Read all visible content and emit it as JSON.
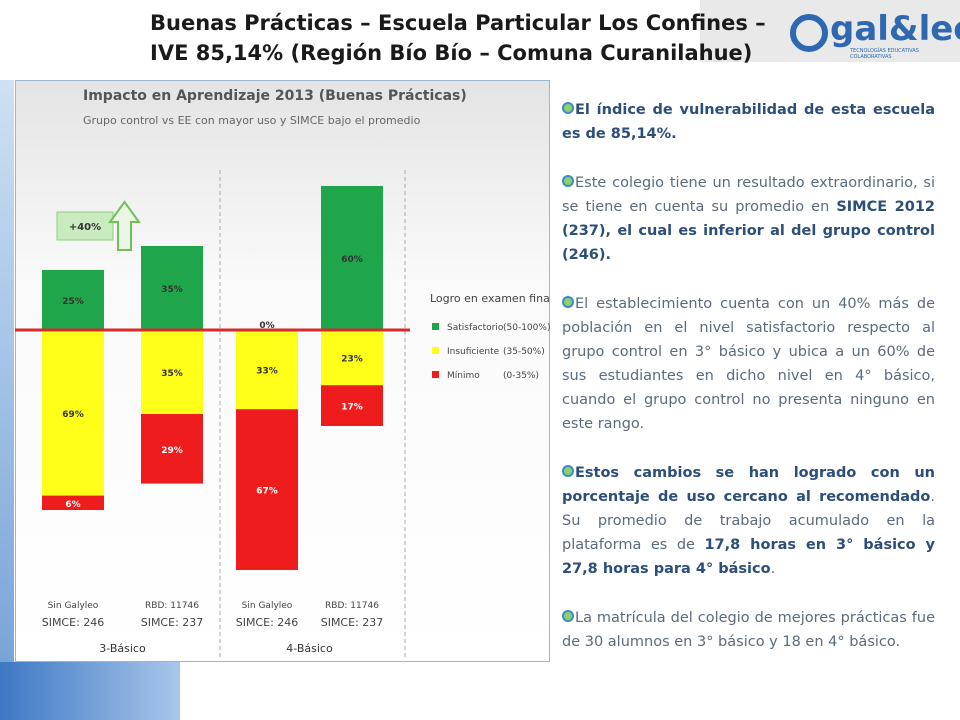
{
  "header": {
    "title_lines": [
      "Buenas Prácticas – Escuela Particular Los Confines –",
      "IVE 85,14% (Región Bío Bío – Comuna Curanilahue)"
    ]
  },
  "logo": {
    "name": "gal&leo",
    "tagline": "TECNOLOGÍAS EDUCATIVAS COLABORATIVAS"
  },
  "chart_data": {
    "type": "diverging-stacked-bar",
    "title": "Impacto en Aprendizaje 2013 (Buenas Prácticas)",
    "subtitle": "Grupo control vs EE con mayor uso y SIMCE bajo el promedio",
    "categories": [
      [
        "Sin Galyleo",
        "SIMCE: 246"
      ],
      [
        "RBD: 11746",
        "SIMCE: 237"
      ],
      [
        "Sin Galyleo",
        "SIMCE: 246"
      ],
      [
        "RBD: 11746",
        "SIMCE: 237"
      ]
    ],
    "groups": [
      "3-Básico",
      "4-Básico"
    ],
    "legend_title": "Logro en examen final",
    "series": [
      {
        "name": "Satisfactorio",
        "range": "(50-100%)",
        "color": "#1fa64a",
        "values": [
          25,
          35,
          0,
          60
        ],
        "value_labels": [
          "25%",
          "35%",
          "0%",
          "60%"
        ]
      },
      {
        "name": "Insuficiente",
        "range": "(35-50%)",
        "color": "#ffff1a",
        "values": [
          69,
          35,
          33,
          23
        ],
        "value_labels": [
          "69%",
          "35%",
          "33%",
          "23%"
        ]
      },
      {
        "name": "Mínimo",
        "range": "(0-35%)",
        "color": "#ee1c1c",
        "values": [
          6,
          29,
          67,
          17
        ],
        "value_labels": [
          "6%",
          "29%",
          "67%",
          "17%"
        ]
      }
    ],
    "annotation": "+40%"
  },
  "bullets": [
    [
      {
        "text": "El índice de vulnerabilidad de esta escuela es de 85,14%.",
        "bold": true
      }
    ],
    [
      {
        "text": "Este colegio tiene un resultado extraordinario, si se tiene en cuenta  su promedio en ",
        "bold": false
      },
      {
        "text": "SIMCE 2012 (237), el cual es inferior al del grupo control (246).",
        "bold": true
      }
    ],
    [
      {
        "text": "El establecimiento cuenta con un 40% más de población en el nivel satisfactorio respecto al grupo control en 3° básico y ubica a un 60% de sus estudiantes en dicho nivel en 4° básico, cuando el grupo control no presenta ninguno en este rango.",
        "bold": false
      }
    ],
    [
      {
        "text": "Estos cambios se han logrado con un porcentaje de uso cercano al recomendado",
        "bold": true
      },
      {
        "text": ". Su promedio de trabajo acumulado en la plataforma es de ",
        "bold": false
      },
      {
        "text": "17,8 horas en 3° básico y 27,8 horas para 4° básico",
        "bold": true
      },
      {
        "text": ".",
        "bold": false
      }
    ],
    [
      {
        "text": "La matrícula del colegio de mejores prácticas fue de 30 alumnos en 3° básico  y 18 en 4° básico.",
        "bold": false
      }
    ]
  ]
}
